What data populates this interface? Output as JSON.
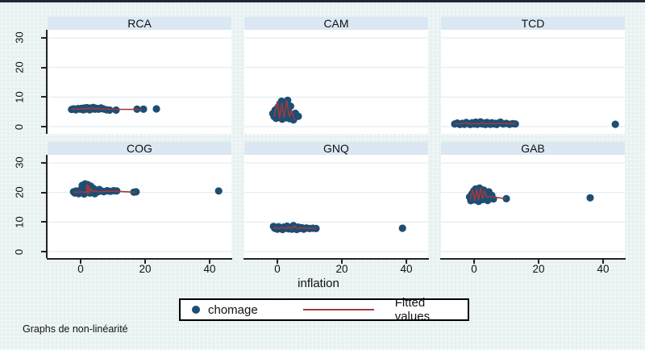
{
  "window": {
    "caption": "Graphs de non-linéarité"
  },
  "colors": {
    "background": "#e8f1f1",
    "top_border": "#1d2935",
    "panel_strip": "#dbe7f2",
    "plot_background": "#ffffff",
    "gridline": "#dde9ef",
    "axis": "#222222",
    "marker": "#1d4e74",
    "fitted_line": "#9d3a3f",
    "legend_border": "#000000"
  },
  "chart_data": {
    "type": "scatter",
    "layout": "2x3-small-multiples",
    "xlabel": "inflation",
    "x_ticks": [
      0,
      20,
      40
    ],
    "y_ticks": [
      0,
      10,
      20,
      30
    ],
    "xlim": [
      -10.25,
      46.75
    ],
    "ylim": [
      -2.7,
      32.7
    ],
    "grid": true,
    "legend": {
      "position": "bottom-center",
      "items": [
        {
          "label": "chomage",
          "marker": "filled-circle",
          "color": "#1d4e74"
        },
        {
          "label": "Fitted values",
          "marker": "line",
          "color": "#9d3a3f"
        }
      ]
    },
    "panels": [
      {
        "title": "RCA",
        "points": [
          [
            -2.8,
            5.8
          ],
          [
            -2.2,
            6.0
          ],
          [
            -1.5,
            5.7
          ],
          [
            -0.8,
            6.1
          ],
          [
            -0.2,
            5.9
          ],
          [
            0.3,
            6.2
          ],
          [
            0.8,
            5.7
          ],
          [
            1.2,
            6.3
          ],
          [
            1.6,
            5.9
          ],
          [
            2.0,
            6.4
          ],
          [
            2.4,
            6.0
          ],
          [
            2.8,
            5.7
          ],
          [
            3.2,
            6.3
          ],
          [
            3.6,
            6.0
          ],
          [
            4.0,
            6.5
          ],
          [
            4.5,
            5.9
          ],
          [
            5.0,
            6.2
          ],
          [
            5.6,
            5.9
          ],
          [
            6.3,
            6.3
          ],
          [
            7.0,
            6.0
          ],
          [
            8.0,
            5.7
          ],
          [
            9.0,
            5.6
          ],
          [
            11.0,
            5.6
          ],
          [
            17.5,
            5.9
          ],
          [
            19.5,
            5.9
          ],
          [
            23.5,
            6.0
          ]
        ],
        "fit_line": [
          [
            -2.8,
            5.95
          ],
          [
            -0.5,
            5.9
          ],
          [
            0.3,
            6.15
          ],
          [
            1.0,
            5.8
          ],
          [
            1.6,
            6.25
          ],
          [
            2.2,
            5.9
          ],
          [
            2.8,
            6.35
          ],
          [
            3.4,
            6.0
          ],
          [
            4.0,
            6.3
          ],
          [
            4.6,
            5.9
          ],
          [
            5.5,
            6.1
          ],
          [
            6.5,
            5.9
          ],
          [
            9.0,
            5.85
          ],
          [
            19.0,
            5.8
          ]
        ]
      },
      {
        "title": "CAM",
        "points": [
          [
            -1.4,
            4.4
          ],
          [
            -1.0,
            3.4
          ],
          [
            -0.7,
            5.6
          ],
          [
            -0.4,
            2.8
          ],
          [
            -0.1,
            4.2
          ],
          [
            0.2,
            6.6
          ],
          [
            0.5,
            3.1
          ],
          [
            0.8,
            7.6
          ],
          [
            1.0,
            5.1
          ],
          [
            1.3,
            8.6
          ],
          [
            1.5,
            2.5
          ],
          [
            1.8,
            6.1
          ],
          [
            2.0,
            4.3
          ],
          [
            2.3,
            7.9
          ],
          [
            2.6,
            3.0
          ],
          [
            2.9,
            5.9
          ],
          [
            3.2,
            8.9
          ],
          [
            3.5,
            4.9
          ],
          [
            3.8,
            2.7
          ],
          [
            4.1,
            6.9
          ],
          [
            4.5,
            3.9
          ],
          [
            5.0,
            2.3
          ],
          [
            5.6,
            4.5
          ],
          [
            6.5,
            3.5
          ]
        ],
        "fit_line": [
          [
            -1.0,
            3.3
          ],
          [
            0.0,
            8.6
          ],
          [
            0.7,
            2.7
          ],
          [
            1.4,
            8.0
          ],
          [
            2.1,
            2.9
          ],
          [
            2.9,
            8.9
          ],
          [
            3.7,
            3.3
          ],
          [
            4.4,
            5.4
          ],
          [
            5.4,
            2.1
          ]
        ]
      },
      {
        "title": "TCD",
        "points": [
          [
            -6.0,
            0.9
          ],
          [
            -5.2,
            1.2
          ],
          [
            -4.4,
            0.7
          ],
          [
            -3.7,
            1.1
          ],
          [
            -3.0,
            0.8
          ],
          [
            -2.4,
            1.4
          ],
          [
            -1.8,
            1.0
          ],
          [
            -1.2,
            0.7
          ],
          [
            -0.6,
            1.3
          ],
          [
            0.0,
            0.9
          ],
          [
            0.5,
            1.5
          ],
          [
            1.0,
            0.8
          ],
          [
            1.5,
            1.1
          ],
          [
            2.0,
            1.6
          ],
          [
            2.5,
            0.9
          ],
          [
            3.0,
            1.2
          ],
          [
            3.5,
            0.7
          ],
          [
            4.0,
            1.4
          ],
          [
            4.5,
            1.0
          ],
          [
            5.0,
            0.8
          ],
          [
            5.5,
            1.3
          ],
          [
            6.0,
            0.9
          ],
          [
            6.5,
            1.1
          ],
          [
            7.0,
            0.7
          ],
          [
            7.6,
            1.2
          ],
          [
            8.2,
            1.5
          ],
          [
            9.0,
            0.9
          ],
          [
            10.0,
            1.1
          ],
          [
            11.0,
            0.8
          ],
          [
            12.0,
            1.0
          ],
          [
            12.8,
            0.9
          ],
          [
            43.8,
            0.8
          ]
        ],
        "fit_line": [
          [
            -6.0,
            0.95
          ],
          [
            -4.0,
            1.0
          ],
          [
            -2.5,
            1.3
          ],
          [
            -1.5,
            0.9
          ],
          [
            0.0,
            1.1
          ],
          [
            1.5,
            0.9
          ],
          [
            2.5,
            1.4
          ],
          [
            3.5,
            0.9
          ],
          [
            5.0,
            1.1
          ],
          [
            6.5,
            0.95
          ],
          [
            8.0,
            1.1
          ],
          [
            10.0,
            1.0
          ],
          [
            12.8,
            1.0
          ]
        ]
      },
      {
        "title": "COG",
        "points": [
          [
            -2.2,
            20.2
          ],
          [
            -1.8,
            19.8
          ],
          [
            -1.4,
            20.5
          ],
          [
            -1.0,
            20.0
          ],
          [
            -0.6,
            19.6
          ],
          [
            -0.2,
            20.3
          ],
          [
            0.2,
            21.1
          ],
          [
            0.5,
            22.4
          ],
          [
            0.8,
            20.8
          ],
          [
            1.1,
            19.5
          ],
          [
            1.4,
            22.9
          ],
          [
            1.7,
            21.6
          ],
          [
            2.0,
            20.2
          ],
          [
            2.3,
            22.6
          ],
          [
            2.6,
            21.0
          ],
          [
            2.9,
            19.8
          ],
          [
            3.2,
            22.1
          ],
          [
            3.6,
            20.5
          ],
          [
            4.0,
            21.3
          ],
          [
            4.4,
            19.6
          ],
          [
            4.8,
            20.8
          ],
          [
            5.3,
            20.2
          ],
          [
            5.8,
            21.0
          ],
          [
            6.4,
            20.5
          ],
          [
            7.2,
            20.3
          ],
          [
            8.2,
            20.6
          ],
          [
            9.2,
            20.4
          ],
          [
            10.3,
            20.6
          ],
          [
            11.2,
            20.5
          ],
          [
            16.5,
            20.1
          ],
          [
            17.2,
            20.2
          ],
          [
            42.8,
            20.5
          ]
        ],
        "fit_line": [
          [
            -2.2,
            20.1
          ],
          [
            0.5,
            20.2
          ],
          [
            1.8,
            20.1
          ],
          [
            2.0,
            22.9
          ],
          [
            2.2,
            19.4
          ],
          [
            2.5,
            22.4
          ],
          [
            2.8,
            20.0
          ],
          [
            3.3,
            21.3
          ],
          [
            3.8,
            20.2
          ],
          [
            4.6,
            20.6
          ],
          [
            5.6,
            20.2
          ],
          [
            7.0,
            20.4
          ],
          [
            11.0,
            20.4
          ],
          [
            16.8,
            20.1
          ]
        ]
      },
      {
        "title": "GNQ",
        "points": [
          [
            -1.2,
            8.5
          ],
          [
            -0.8,
            7.9
          ],
          [
            -0.4,
            8.2
          ],
          [
            0.0,
            7.6
          ],
          [
            0.4,
            8.4
          ],
          [
            0.8,
            7.8
          ],
          [
            1.2,
            8.1
          ],
          [
            1.6,
            7.5
          ],
          [
            2.0,
            8.3
          ],
          [
            2.5,
            7.9
          ],
          [
            3.0,
            8.6
          ],
          [
            3.5,
            7.7
          ],
          [
            4.0,
            8.2
          ],
          [
            4.5,
            7.6
          ],
          [
            5.0,
            8.8
          ],
          [
            5.5,
            8.0
          ],
          [
            6.0,
            7.5
          ],
          [
            6.5,
            8.3
          ],
          [
            7.0,
            7.8
          ],
          [
            7.6,
            8.1
          ],
          [
            8.2,
            7.6
          ],
          [
            9.0,
            8.0
          ],
          [
            10.0,
            7.8
          ],
          [
            11.0,
            7.9
          ],
          [
            12.0,
            7.8
          ],
          [
            38.8,
            7.9
          ]
        ],
        "fit_line": [
          [
            -1.2,
            8.1
          ],
          [
            0.5,
            7.8
          ],
          [
            1.5,
            8.2
          ],
          [
            2.5,
            7.8
          ],
          [
            3.5,
            8.3
          ],
          [
            4.5,
            7.8
          ],
          [
            5.2,
            8.7
          ],
          [
            6.0,
            7.8
          ],
          [
            7.5,
            8.0
          ],
          [
            9.0,
            7.9
          ],
          [
            12.0,
            7.85
          ]
        ]
      },
      {
        "title": "GAB",
        "points": [
          [
            -1.4,
            18.5
          ],
          [
            -1.0,
            17.2
          ],
          [
            -0.7,
            19.5
          ],
          [
            -0.4,
            18.0
          ],
          [
            -0.1,
            20.5
          ],
          [
            0.2,
            17.5
          ],
          [
            0.5,
            21.2
          ],
          [
            0.8,
            18.8
          ],
          [
            1.1,
            20.0
          ],
          [
            1.4,
            17.0
          ],
          [
            1.7,
            21.5
          ],
          [
            2.0,
            18.4
          ],
          [
            2.3,
            19.8
          ],
          [
            2.6,
            17.6
          ],
          [
            3.0,
            20.8
          ],
          [
            3.4,
            18.2
          ],
          [
            3.8,
            19.4
          ],
          [
            4.2,
            17.3
          ],
          [
            4.6,
            20.2
          ],
          [
            5.0,
            18.6
          ],
          [
            5.5,
            19.0
          ],
          [
            6.0,
            17.8
          ],
          [
            10.0,
            17.9
          ],
          [
            36.0,
            18.2
          ]
        ],
        "fit_line": [
          [
            -1.2,
            17.6
          ],
          [
            -0.5,
            21.0
          ],
          [
            0.2,
            17.2
          ],
          [
            0.8,
            21.3
          ],
          [
            1.4,
            17.4
          ],
          [
            2.0,
            21.6
          ],
          [
            2.6,
            17.8
          ],
          [
            3.2,
            20.5
          ],
          [
            4.0,
            18.3
          ],
          [
            5.0,
            18.6
          ],
          [
            10.0,
            17.9
          ]
        ]
      }
    ]
  }
}
